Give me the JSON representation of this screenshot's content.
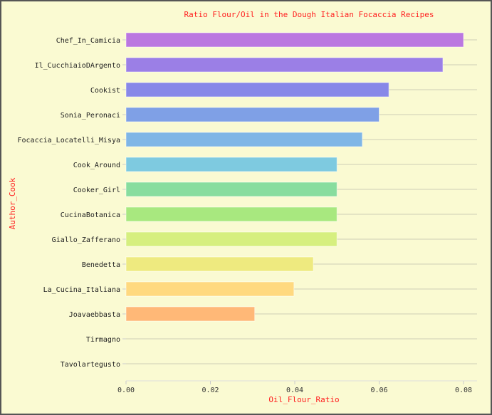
{
  "chart_data": {
    "type": "bar",
    "orientation": "horizontal",
    "title": "Ratio Flour/Oil in the Dough Italian Focaccia Recipes",
    "xlabel": "Oil_Flour_Ratio",
    "ylabel": "Author_Cook",
    "xlim": [
      0,
      0.084
    ],
    "xticks": [
      0.0,
      0.02,
      0.04,
      0.06,
      0.08
    ],
    "xtick_labels": [
      "0.00",
      "0.02",
      "0.04",
      "0.06",
      "0.08"
    ],
    "grid": "horizontal",
    "categories": [
      "Chef_In_Camicia",
      "Il_CucchiaioDArgento",
      "Cookist",
      "Sonia_Peronaci",
      "Focaccia_Locatelli_Misya",
      "Cook_Around",
      "Cooker_Girl",
      "CucinaBotanica",
      "Giallo_Zafferano",
      "Benedetta",
      "La_Cucina_Italiana",
      "Joavaebbasta",
      "Tirmagno",
      "Tavolartegusto"
    ],
    "values": [
      0.08,
      0.0751,
      0.0623,
      0.06,
      0.056,
      0.05,
      0.05,
      0.05,
      0.05,
      0.0444,
      0.0398,
      0.0305,
      0,
      0
    ],
    "colors": [
      "#bb77e0",
      "#9b7fe6",
      "#8888e8",
      "#7fa0e6",
      "#7fb6e6",
      "#7ecae0",
      "#88dd9e",
      "#a8e87f",
      "#d6ef7f",
      "#eeea7f",
      "#ffd97f",
      "#ffb877",
      "#cccccc",
      "#cccccc"
    ],
    "title_color": "#ff2020",
    "label_color": "#ff2020"
  }
}
